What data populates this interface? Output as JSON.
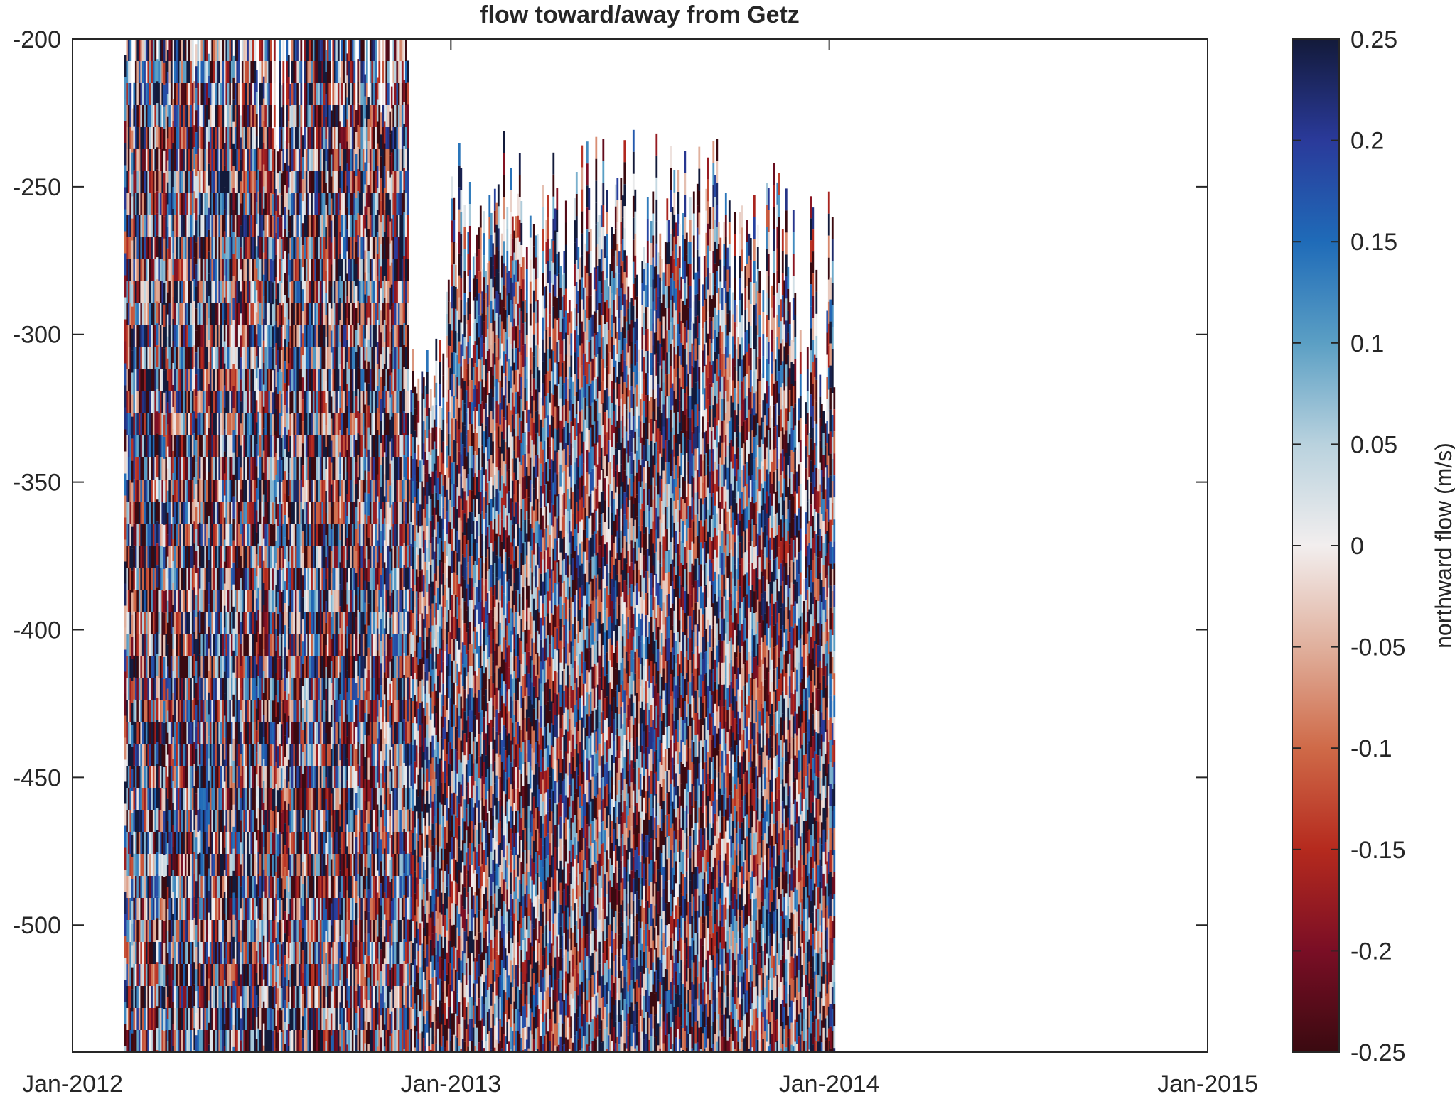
{
  "chart_data": {
    "type": "heatmap",
    "title": "flow toward/away from Getz",
    "xlabel": "",
    "ylabel": "",
    "x_ticks": [
      "Jan-2012",
      "Jan-2013",
      "Jan-2014",
      "Jan-2015"
    ],
    "x_range": [
      "2012-01-01",
      "2015-01-01"
    ],
    "y_ticks": [
      -200,
      -250,
      -300,
      -350,
      -400,
      -450,
      -500
    ],
    "ylim": [
      -543,
      -200
    ],
    "data_extent": {
      "time_start": "2012-02-20",
      "time_end": "2014-01-06",
      "depth_min": -543,
      "depth_max": -200
    },
    "colorbar": {
      "label": "northward flow (m/s)",
      "ticks": [
        0.25,
        0.2,
        0.15,
        0.1,
        0.05,
        0,
        -0.05,
        -0.1,
        -0.15,
        -0.2,
        -0.25
      ],
      "clim": [
        -0.25,
        0.25
      ],
      "colormap": [
        "#3a0a10",
        "#7a0e25",
        "#b52a1e",
        "#cf6a48",
        "#e0b09d",
        "#f2eeee",
        "#b9d2de",
        "#5b9fc4",
        "#1f6bb8",
        "#2a3a9a",
        "#131a3a"
      ]
    },
    "pattern": "noisy alternating positive/negative velocities; upper depths (-200 to -330 m) sparsely sampled with gaps, strongest values in dark blue and dark red"
  }
}
